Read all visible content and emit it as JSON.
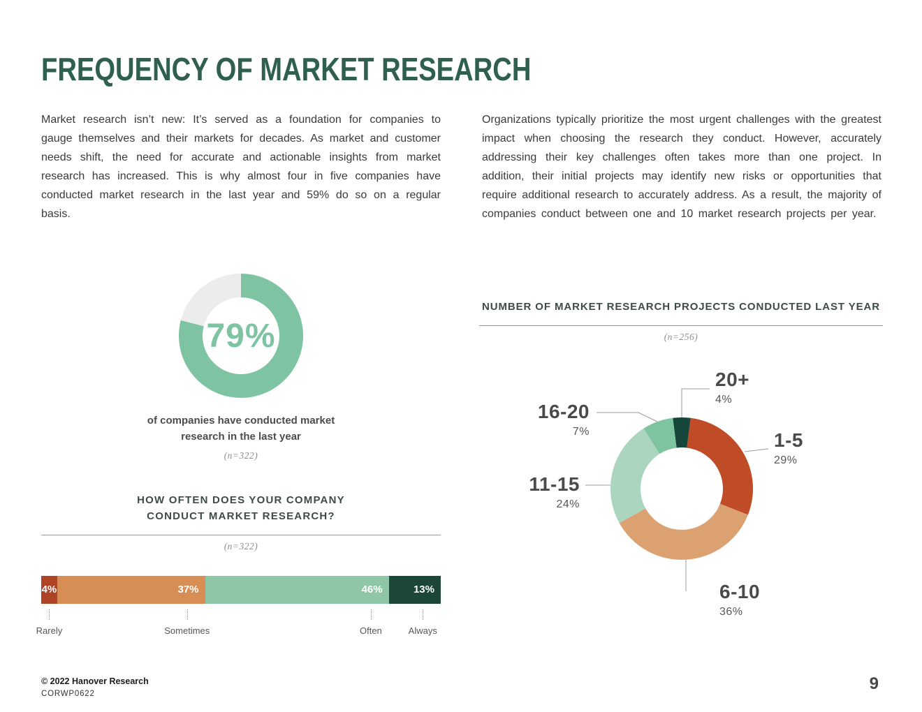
{
  "page": {
    "title": "FREQUENCY OF MARKET RESEARCH",
    "footer": {
      "copyright": "© 2022 Hanover Research",
      "code": "CORWP0622",
      "page_number": "9"
    }
  },
  "intro": {
    "left": "Market research isn’t new: It’s served as a foundation for companies to gauge themselves and their markets for decades. As market and customer needs shift, the need for accurate and actionable insights from market research has increased. This is why almost four in five companies have conducted market research in the last year and 59% do so on a regular basis.",
    "right": "Organizations typically prioritize the most urgent challenges with the greatest impact when choosing the research they conduct. However, accurately addressing their key challenges often takes more than one project. In addition, their initial projects may identify new risks or opportunities that require additional research to accurately address. As a result, the majority of companies conduct between one and 10 market research projects per year."
  },
  "chart_data": [
    {
      "id": "conducted_donut",
      "type": "pie",
      "value": 79,
      "center_label": "79%",
      "caption": "of companies have conducted market research in the last year",
      "sample": "(n=322)",
      "colors": {
        "value": "#7EC3A2",
        "remainder": "#ECECEC"
      }
    },
    {
      "id": "frequency_bar",
      "type": "bar",
      "title": "HOW OFTEN DOES YOUR COMPANY CONDUCT MARKET RESEARCH?",
      "sample": "(n=322)",
      "categories": [
        "Rarely",
        "Sometimes",
        "Often",
        "Always"
      ],
      "values": [
        4,
        37,
        46,
        13
      ],
      "colors": [
        "#AE4326",
        "#D78E55",
        "#8FC7A6",
        "#1C4637"
      ],
      "layout_hint": "100% stacked horizontal bar, value labels inside segments, category labels below"
    },
    {
      "id": "projects_donut",
      "type": "pie",
      "title": "NUMBER OF MARKET RESEARCH PROJECTS CONDUCTED LAST YEAR",
      "sample": "(n=256)",
      "segments": [
        {
          "label": "20+",
          "value": 4,
          "color": "#16453A"
        },
        {
          "label": "1-5",
          "value": 29,
          "color": "#BF4B27"
        },
        {
          "label": "6-10",
          "value": 36,
          "color": "#DCA171"
        },
        {
          "label": "11-15",
          "value": 24,
          "color": "#ABD5BE"
        },
        {
          "label": "16-20",
          "value": 7,
          "color": "#7FC4A1"
        }
      ],
      "layout_hint": "donut starting with 20+ centered at 12 o'clock, clockwise, outside labels with leader lines"
    }
  ]
}
